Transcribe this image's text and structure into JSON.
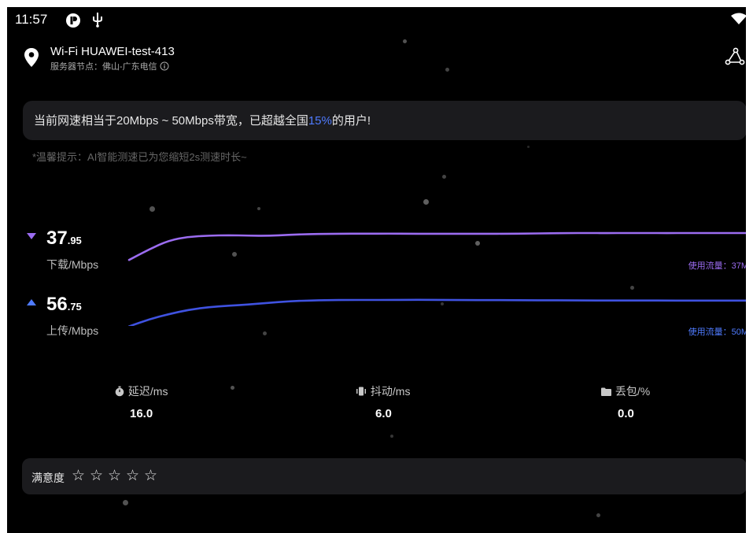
{
  "status_bar": {
    "time": "11:57"
  },
  "header": {
    "wifi_name": "Wi-Fi HUAWEI-test-413",
    "server_node": "服务器节点：佛山-广东电信"
  },
  "banner": {
    "prefix": "当前网速相当于20Mbps ~ 50Mbps带宽，已超越全国",
    "highlight": "15%",
    "suffix": "的用户!"
  },
  "tip": "*温馨提示：AI智能测速已为您缩短2s测速时长~",
  "download": {
    "value_int": "37",
    "value_dec": ".95",
    "label": "下载/Mbps",
    "usage": "使用流量：37M",
    "color": "#9b6cf0"
  },
  "upload": {
    "value_int": "56",
    "value_dec": ".75",
    "label": "上传/Mbps",
    "usage": "使用流量：50M",
    "color": "#3f52e0"
  },
  "metrics": [
    {
      "label": "延迟/ms",
      "value": "16.0",
      "icon": "stopwatch-icon"
    },
    {
      "label": "抖动/ms",
      "value": "6.0",
      "icon": "jitter-icon"
    },
    {
      "label": "丢包/%",
      "value": "0.0",
      "icon": "folder-icon"
    }
  ],
  "rating": {
    "label": "满意度",
    "stars": 5
  },
  "chart_data": {
    "type": "line",
    "series": [
      {
        "name": "下载/Mbps",
        "values": [
          20,
          27,
          33,
          35.5,
          36.2,
          36.5,
          36.2,
          36.1,
          36.8,
          37.2,
          37.4,
          37.6,
          37.5,
          37.6,
          37.5,
          37.5,
          37.5,
          37.5,
          37.5,
          37.5,
          37.6,
          37.8,
          37.9,
          37.95,
          37.9,
          37.95,
          37.95,
          37.9,
          37.95,
          37.95,
          37.95,
          37.95
        ]
      },
      {
        "name": "上传/Mbps",
        "values": [
          42,
          46,
          49,
          51.5,
          53,
          53.8,
          54.5,
          55.5,
          56.3,
          56.8,
          57.0,
          57.1,
          57.1,
          57.1,
          57.2,
          57.2,
          57.1,
          57.0,
          57.0,
          57.0,
          56.9,
          56.9,
          56.9,
          56.8,
          56.8,
          56.8,
          56.8,
          56.75,
          56.75,
          56.75,
          56.75,
          56.75
        ]
      }
    ]
  }
}
